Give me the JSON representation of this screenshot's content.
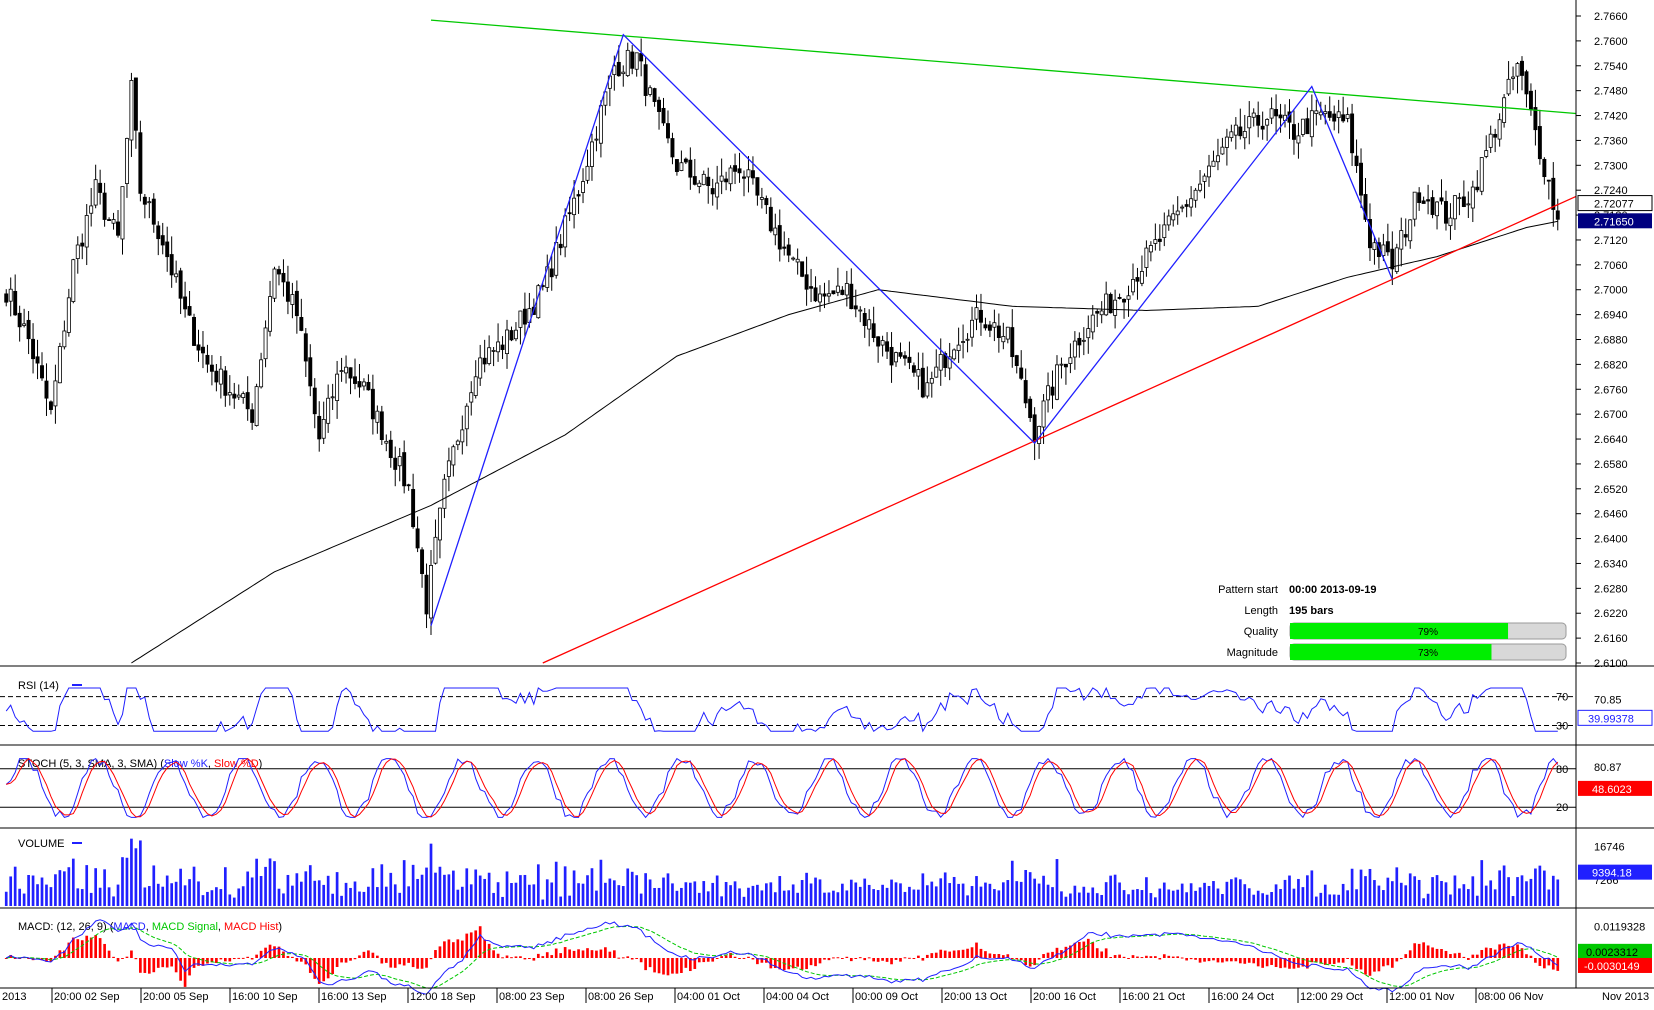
{
  "chart_data": {
    "type": "candlestick",
    "title": "",
    "instrument": "",
    "price_axis": {
      "min": 2.61,
      "max": 2.766,
      "tick_labels": [
        "2.7660",
        "2.7600",
        "2.7540",
        "2.7480",
        "2.7420",
        "2.7360",
        "2.7300",
        "2.7240",
        "2.7180",
        "2.7120",
        "2.7060",
        "2.7000",
        "2.6940",
        "2.6880",
        "2.6820",
        "2.6760",
        "2.6700",
        "2.6640",
        "2.6580",
        "2.6520",
        "2.6460",
        "2.6400",
        "2.6340",
        "2.6280",
        "2.6220",
        "2.6160",
        "2.6100"
      ],
      "current_price_label": "2.71650",
      "alt_price_label": "2.72077"
    },
    "time_axis": {
      "labels": [
        "2013",
        "20:00 02 Sep",
        "20:00 05 Sep",
        "16:00 10 Sep",
        "16:00 13 Sep",
        "12:00 18 Sep",
        "08:00 23 Sep",
        "08:00 26 Sep",
        "04:00 01 Oct",
        "04:00 04 Oct",
        "00:00 09 Oct",
        "20:00 13 Oct",
        "20:00 16 Oct",
        "16:00 21 Oct",
        "16:00 24 Oct",
        "12:00 29 Oct",
        "12:00 01 Nov",
        "08:00 06 Nov",
        "Nov 2013"
      ]
    },
    "anchor_points": [
      {
        "bar": 0,
        "close": 2.7
      },
      {
        "bar": 5,
        "close": 2.688
      },
      {
        "bar": 10,
        "close": 2.67
      },
      {
        "bar": 15,
        "close": 2.706
      },
      {
        "bar": 20,
        "close": 2.724
      },
      {
        "bar": 25,
        "close": 2.712
      },
      {
        "bar": 28,
        "close": 2.748
      },
      {
        "bar": 30,
        "close": 2.724
      },
      {
        "bar": 35,
        "close": 2.712
      },
      {
        "bar": 40,
        "close": 2.694
      },
      {
        "bar": 45,
        "close": 2.682
      },
      {
        "bar": 50,
        "close": 2.676
      },
      {
        "bar": 55,
        "close": 2.67
      },
      {
        "bar": 60,
        "close": 2.706
      },
      {
        "bar": 65,
        "close": 2.694
      },
      {
        "bar": 70,
        "close": 2.664
      },
      {
        "bar": 75,
        "close": 2.682
      },
      {
        "bar": 80,
        "close": 2.676
      },
      {
        "bar": 85,
        "close": 2.664
      },
      {
        "bar": 90,
        "close": 2.652
      },
      {
        "bar": 94,
        "close": 2.624
      },
      {
        "bar": 98,
        "close": 2.652
      },
      {
        "bar": 105,
        "close": 2.682
      },
      {
        "bar": 112,
        "close": 2.688
      },
      {
        "bar": 120,
        "close": 2.7
      },
      {
        "bar": 128,
        "close": 2.724
      },
      {
        "bar": 136,
        "close": 2.754
      },
      {
        "bar": 141,
        "close": 2.756
      },
      {
        "bar": 146,
        "close": 2.74
      },
      {
        "bar": 150,
        "close": 2.73
      },
      {
        "bar": 158,
        "close": 2.724
      },
      {
        "bar": 164,
        "close": 2.73
      },
      {
        "bar": 170,
        "close": 2.718
      },
      {
        "bar": 176,
        "close": 2.706
      },
      {
        "bar": 182,
        "close": 2.698
      },
      {
        "bar": 188,
        "close": 2.7
      },
      {
        "bar": 195,
        "close": 2.688
      },
      {
        "bar": 200,
        "close": 2.682
      },
      {
        "bar": 206,
        "close": 2.676
      },
      {
        "bar": 212,
        "close": 2.688
      },
      {
        "bar": 218,
        "close": 2.694
      },
      {
        "bar": 224,
        "close": 2.688
      },
      {
        "bar": 230,
        "close": 2.666
      },
      {
        "bar": 236,
        "close": 2.682
      },
      {
        "bar": 242,
        "close": 2.692
      },
      {
        "bar": 250,
        "close": 2.7
      },
      {
        "bar": 258,
        "close": 2.712
      },
      {
        "bar": 266,
        "close": 2.724
      },
      {
        "bar": 274,
        "close": 2.736
      },
      {
        "bar": 282,
        "close": 2.742
      },
      {
        "bar": 288,
        "close": 2.738
      },
      {
        "bar": 294,
        "close": 2.742
      },
      {
        "bar": 300,
        "close": 2.74
      },
      {
        "bar": 305,
        "close": 2.712
      },
      {
        "bar": 310,
        "close": 2.706
      },
      {
        "bar": 316,
        "close": 2.724
      },
      {
        "bar": 322,
        "close": 2.718
      },
      {
        "bar": 328,
        "close": 2.724
      },
      {
        "bar": 334,
        "close": 2.742
      },
      {
        "bar": 338,
        "close": 2.754
      },
      {
        "bar": 341,
        "close": 2.742
      },
      {
        "bar": 344,
        "close": 2.73
      },
      {
        "bar": 347,
        "close": 2.7165
      }
    ],
    "moving_average": [
      {
        "bar": 28,
        "value": 2.61
      },
      {
        "bar": 60,
        "value": 2.632
      },
      {
        "bar": 95,
        "value": 2.648
      },
      {
        "bar": 125,
        "value": 2.665
      },
      {
        "bar": 150,
        "value": 2.684
      },
      {
        "bar": 175,
        "value": 2.694
      },
      {
        "bar": 195,
        "value": 2.7
      },
      {
        "bar": 225,
        "value": 2.696
      },
      {
        "bar": 255,
        "value": 2.695
      },
      {
        "bar": 280,
        "value": 2.696
      },
      {
        "bar": 300,
        "value": 2.703
      },
      {
        "bar": 320,
        "value": 2.708
      },
      {
        "bar": 340,
        "value": 2.715
      },
      {
        "bar": 347,
        "value": 2.7165
      }
    ],
    "pattern_lines": [
      {
        "name": "resistance",
        "color": "#00c800",
        "from": {
          "bar": 95,
          "price": 2.765
        },
        "to": {
          "bar": 352,
          "price": 2.7425
        }
      },
      {
        "name": "support",
        "color": "#ff0000",
        "from": {
          "bar": 120,
          "price": 2.61
        },
        "to": {
          "bar": 352,
          "price": 2.7225
        }
      }
    ],
    "zigzag": {
      "color": "#2020ff",
      "points": [
        {
          "bar": 95,
          "price": 2.619
        },
        {
          "bar": 138,
          "price": 2.7615
        },
        {
          "bar": 230,
          "price": 2.663
        },
        {
          "bar": 292,
          "price": 2.749
        },
        {
          "bar": 310,
          "price": 2.7025
        }
      ]
    },
    "pattern_info": {
      "pattern_start_label": "Pattern start",
      "pattern_start_value": "00:00 2013-09-19",
      "length_label": "Length",
      "length_value": "195 bars",
      "quality_label": "Quality",
      "quality_value": 79,
      "quality_text": "79%",
      "magnitude_label": "Magnitude",
      "magnitude_value": 73,
      "magnitude_text": "73%"
    },
    "rsi": {
      "title": "RSI (14)",
      "levels": [
        70,
        30
      ],
      "level_labels": [
        "70",
        "30"
      ],
      "axis_label": "70.85",
      "current_value": "39.99378",
      "color": "#2020ff"
    },
    "stoch": {
      "title_prefix": "STOCH (5, 3, SMA, 3, SMA) (",
      "k_name": "Slow %K",
      "d_name": "Slow %D",
      "title_suffix": ")",
      "levels": [
        80,
        20
      ],
      "level_labels": [
        "80",
        "20"
      ],
      "axis_label": "80.87",
      "current_value": "48.6023",
      "k_color": "#2020ff",
      "d_color": "#ff0000"
    },
    "volume": {
      "title": "VOLUME",
      "axis_label": "16746",
      "axis_label_low": "7266",
      "current_value": "9394.18",
      "color": "#2020ff"
    },
    "macd": {
      "title_prefix": "MACD: (12, 26, 9) (",
      "macd_name": "MACD",
      "signal_name": "MACD Signal",
      "hist_name": "MACD Hist",
      "title_suffix": ")",
      "axis_label": "0.0119328",
      "signal_value": "0.0023312",
      "current_value": "-0.0030149",
      "macd_color": "#2020ff",
      "signal_color": "#00c800",
      "hist_color": "#ff0000"
    },
    "colors": {
      "bull": "#ffffff",
      "bear": "#000000",
      "background": "#ffffff",
      "grid": "#000000",
      "price_label_bg": "#ffffff",
      "current_label_bg": "#000080"
    }
  }
}
